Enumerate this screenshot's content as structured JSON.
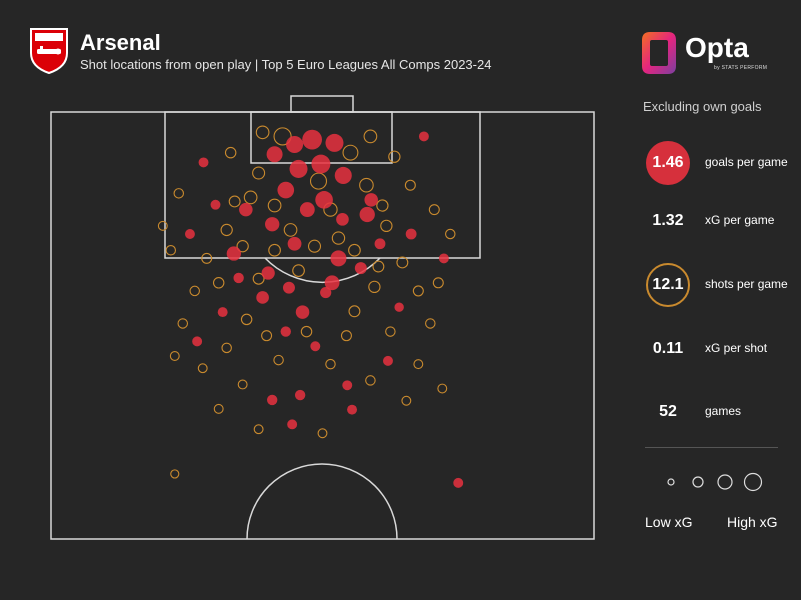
{
  "header": {
    "title": "Arsenal",
    "subtitle": "Shot locations from open play | Top 5 Euro Leagues All Comps 2023-24"
  },
  "brand": {
    "name": "Opta",
    "tagline": "by STATS PERFORM"
  },
  "stats_panel": {
    "note": "Excluding own goals",
    "items": [
      {
        "value": "1.46",
        "label": "goals per game",
        "style": "filled-red"
      },
      {
        "value": "1.32",
        "label": "xG per game",
        "style": "plain"
      },
      {
        "value": "12.1",
        "label": "shots per game",
        "style": "ring-gold"
      },
      {
        "value": "0.11",
        "label": "xG per shot",
        "style": "plain"
      },
      {
        "value": "52",
        "label": "games",
        "style": "plain"
      }
    ],
    "xg_legend": {
      "low": "Low xG",
      "high": "High xG"
    }
  },
  "colors": {
    "background": "#262626",
    "goal": "#e8313f",
    "shot": "#c98a2e",
    "pitch_lines": "#d9d9d9"
  },
  "chart_data": {
    "type": "scatter",
    "title": "Arsenal",
    "subtitle": "Shot locations from open play | Top 5 Euro Leagues All Comps 2023-24",
    "pitch": "half-pitch, attacking upward",
    "x_units": "metres from left touchline",
    "y_units": "metres from goal line",
    "xlim": [
      0,
      68
    ],
    "ylim": [
      0,
      52.5
    ],
    "goals": [
      {
        "x": 30.5,
        "y": 4.0,
        "xg": 0.3
      },
      {
        "x": 28.0,
        "y": 5.2,
        "xg": 0.25
      },
      {
        "x": 32.7,
        "y": 3.4,
        "xg": 0.45
      },
      {
        "x": 35.5,
        "y": 3.8,
        "xg": 0.35
      },
      {
        "x": 31.0,
        "y": 7.0,
        "xg": 0.35
      },
      {
        "x": 33.8,
        "y": 6.4,
        "xg": 0.4
      },
      {
        "x": 29.4,
        "y": 9.6,
        "xg": 0.28
      },
      {
        "x": 34.2,
        "y": 10.8,
        "xg": 0.33
      },
      {
        "x": 36.6,
        "y": 7.8,
        "xg": 0.3
      },
      {
        "x": 32.1,
        "y": 12.0,
        "xg": 0.2
      },
      {
        "x": 39.6,
        "y": 12.6,
        "xg": 0.22
      },
      {
        "x": 27.7,
        "y": 13.8,
        "xg": 0.18
      },
      {
        "x": 24.4,
        "y": 12.0,
        "xg": 0.15
      },
      {
        "x": 22.9,
        "y": 17.4,
        "xg": 0.18
      },
      {
        "x": 30.5,
        "y": 16.2,
        "xg": 0.16
      },
      {
        "x": 36.0,
        "y": 18.0,
        "xg": 0.25
      },
      {
        "x": 35.2,
        "y": 21.0,
        "xg": 0.2
      },
      {
        "x": 26.5,
        "y": 22.8,
        "xg": 0.12
      },
      {
        "x": 34.4,
        "y": 22.2,
        "xg": 0.08
      },
      {
        "x": 31.5,
        "y": 24.6,
        "xg": 0.15
      },
      {
        "x": 38.8,
        "y": 19.2,
        "xg": 0.1
      },
      {
        "x": 41.2,
        "y": 16.2,
        "xg": 0.07
      },
      {
        "x": 45.1,
        "y": 15.0,
        "xg": 0.07
      },
      {
        "x": 46.7,
        "y": 3.0,
        "xg": 0.05
      },
      {
        "x": 19.1,
        "y": 6.2,
        "xg": 0.05
      },
      {
        "x": 17.4,
        "y": 15.0,
        "xg": 0.05
      },
      {
        "x": 20.6,
        "y": 11.4,
        "xg": 0.05
      },
      {
        "x": 23.5,
        "y": 20.4,
        "xg": 0.06
      },
      {
        "x": 18.3,
        "y": 28.2,
        "xg": 0.05
      },
      {
        "x": 29.4,
        "y": 27.0,
        "xg": 0.06
      },
      {
        "x": 33.1,
        "y": 28.8,
        "xg": 0.05
      },
      {
        "x": 37.1,
        "y": 33.6,
        "xg": 0.05
      },
      {
        "x": 42.2,
        "y": 30.6,
        "xg": 0.05
      },
      {
        "x": 31.2,
        "y": 34.8,
        "xg": 0.06
      },
      {
        "x": 27.7,
        "y": 35.4,
        "xg": 0.06
      },
      {
        "x": 30.2,
        "y": 38.4,
        "xg": 0.05
      },
      {
        "x": 37.7,
        "y": 36.6,
        "xg": 0.05
      },
      {
        "x": 51.0,
        "y": 45.6,
        "xg": 0.05
      },
      {
        "x": 49.2,
        "y": 18.0,
        "xg": 0.05
      },
      {
        "x": 43.6,
        "y": 24.0,
        "xg": 0.04
      },
      {
        "x": 21.5,
        "y": 24.6,
        "xg": 0.05
      },
      {
        "x": 36.5,
        "y": 13.2,
        "xg": 0.12
      },
      {
        "x": 40.1,
        "y": 10.8,
        "xg": 0.15
      },
      {
        "x": 27.2,
        "y": 19.8,
        "xg": 0.14
      },
      {
        "x": 29.8,
        "y": 21.6,
        "xg": 0.1
      }
    ],
    "shots": [
      {
        "x": 26.0,
        "y": 7.5,
        "xg": 0.1
      },
      {
        "x": 37.5,
        "y": 5.0,
        "xg": 0.2
      },
      {
        "x": 39.5,
        "y": 9.0,
        "xg": 0.15
      },
      {
        "x": 25.0,
        "y": 10.5,
        "xg": 0.12
      },
      {
        "x": 22.0,
        "y": 14.5,
        "xg": 0.08
      },
      {
        "x": 42.0,
        "y": 14.0,
        "xg": 0.08
      },
      {
        "x": 44.0,
        "y": 18.5,
        "xg": 0.07
      },
      {
        "x": 40.5,
        "y": 21.5,
        "xg": 0.08
      },
      {
        "x": 38.0,
        "y": 24.5,
        "xg": 0.07
      },
      {
        "x": 24.5,
        "y": 25.5,
        "xg": 0.06
      },
      {
        "x": 21.0,
        "y": 21.0,
        "xg": 0.06
      },
      {
        "x": 19.5,
        "y": 18.0,
        "xg": 0.05
      },
      {
        "x": 18.0,
        "y": 22.0,
        "xg": 0.04
      },
      {
        "x": 46.0,
        "y": 22.0,
        "xg": 0.05
      },
      {
        "x": 47.5,
        "y": 26.0,
        "xg": 0.04
      },
      {
        "x": 16.5,
        "y": 26.0,
        "xg": 0.04
      },
      {
        "x": 45.0,
        "y": 9.0,
        "xg": 0.05
      },
      {
        "x": 48.0,
        "y": 12.0,
        "xg": 0.05
      },
      {
        "x": 16.0,
        "y": 10.0,
        "xg": 0.04
      },
      {
        "x": 15.0,
        "y": 17.0,
        "xg": 0.04
      },
      {
        "x": 28.5,
        "y": 30.5,
        "xg": 0.04
      },
      {
        "x": 35.0,
        "y": 31.0,
        "xg": 0.04
      },
      {
        "x": 40.0,
        "y": 33.0,
        "xg": 0.04
      },
      {
        "x": 24.0,
        "y": 33.5,
        "xg": 0.03
      },
      {
        "x": 21.0,
        "y": 36.5,
        "xg": 0.03
      },
      {
        "x": 44.5,
        "y": 35.5,
        "xg": 0.03
      },
      {
        "x": 46.0,
        "y": 31.0,
        "xg": 0.03
      },
      {
        "x": 19.0,
        "y": 31.5,
        "xg": 0.03
      },
      {
        "x": 34.0,
        "y": 39.5,
        "xg": 0.03
      },
      {
        "x": 26.0,
        "y": 39.0,
        "xg": 0.03
      },
      {
        "x": 48.5,
        "y": 21.0,
        "xg": 0.05
      },
      {
        "x": 30.0,
        "y": 14.5,
        "xg": 0.12
      },
      {
        "x": 33.0,
        "y": 16.5,
        "xg": 0.1
      },
      {
        "x": 36.0,
        "y": 15.5,
        "xg": 0.11
      },
      {
        "x": 28.0,
        "y": 17.0,
        "xg": 0.09
      },
      {
        "x": 38.0,
        "y": 17.0,
        "xg": 0.09
      },
      {
        "x": 24.0,
        "y": 16.5,
        "xg": 0.08
      },
      {
        "x": 41.0,
        "y": 19.0,
        "xg": 0.07
      },
      {
        "x": 31.0,
        "y": 19.5,
        "xg": 0.09
      },
      {
        "x": 26.0,
        "y": 20.5,
        "xg": 0.07
      },
      {
        "x": 33.5,
        "y": 8.5,
        "xg": 0.25
      },
      {
        "x": 29.0,
        "y": 3.0,
        "xg": 0.3
      },
      {
        "x": 26.5,
        "y": 2.5,
        "xg": 0.12
      },
      {
        "x": 40.0,
        "y": 3.0,
        "xg": 0.12
      },
      {
        "x": 43.0,
        "y": 5.5,
        "xg": 0.08
      },
      {
        "x": 22.5,
        "y": 5.0,
        "xg": 0.06
      },
      {
        "x": 50.0,
        "y": 15.0,
        "xg": 0.04
      },
      {
        "x": 14.0,
        "y": 14.0,
        "xg": 0.03
      },
      {
        "x": 15.5,
        "y": 30.0,
        "xg": 0.03
      },
      {
        "x": 49.0,
        "y": 34.0,
        "xg": 0.03
      },
      {
        "x": 37.0,
        "y": 27.5,
        "xg": 0.05
      },
      {
        "x": 27.0,
        "y": 27.5,
        "xg": 0.05
      },
      {
        "x": 32.0,
        "y": 27.0,
        "xg": 0.06
      },
      {
        "x": 42.5,
        "y": 27.0,
        "xg": 0.04
      },
      {
        "x": 22.0,
        "y": 29.0,
        "xg": 0.04
      },
      {
        "x": 15.5,
        "y": 44.5,
        "xg": 0.02
      },
      {
        "x": 23.0,
        "y": 11.0,
        "xg": 0.07
      },
      {
        "x": 41.5,
        "y": 11.5,
        "xg": 0.08
      },
      {
        "x": 35.0,
        "y": 12.0,
        "xg": 0.14
      },
      {
        "x": 28.0,
        "y": 11.5,
        "xg": 0.12
      }
    ]
  }
}
